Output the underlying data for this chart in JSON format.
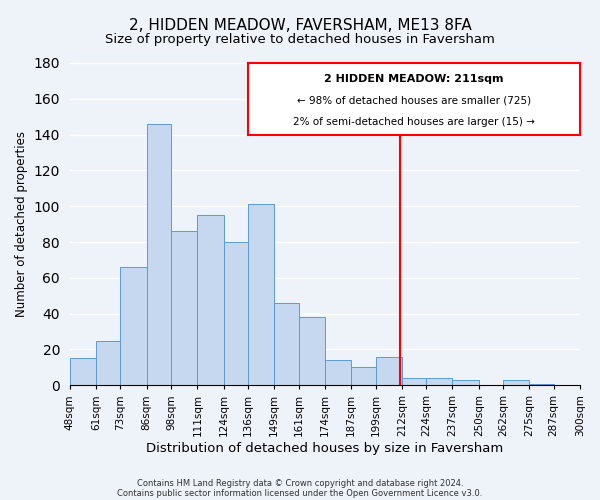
{
  "title": "2, HIDDEN MEADOW, FAVERSHAM, ME13 8FA",
  "subtitle": "Size of property relative to detached houses in Faversham",
  "xlabel": "Distribution of detached houses by size in Faversham",
  "ylabel": "Number of detached properties",
  "bar_edges": [
    48,
    61,
    73,
    86,
    98,
    111,
    124,
    136,
    149,
    161,
    174,
    187,
    199,
    212,
    224,
    237,
    250,
    262,
    275,
    287,
    300
  ],
  "bar_heights": [
    15,
    25,
    66,
    146,
    86,
    95,
    80,
    101,
    46,
    38,
    14,
    10,
    16,
    4,
    4,
    3,
    0,
    3,
    1,
    0
  ],
  "bar_color": "#c5d8f0",
  "bar_edge_color": "#5b9bd5",
  "vline_x": 211,
  "vline_color": "red",
  "ylim": [
    0,
    180
  ],
  "yticks": [
    0,
    20,
    40,
    60,
    80,
    100,
    120,
    140,
    160,
    180
  ],
  "tick_labels": [
    "48sqm",
    "61sqm",
    "73sqm",
    "86sqm",
    "98sqm",
    "111sqm",
    "124sqm",
    "136sqm",
    "149sqm",
    "161sqm",
    "174sqm",
    "187sqm",
    "199sqm",
    "212sqm",
    "224sqm",
    "237sqm",
    "250sqm",
    "262sqm",
    "275sqm",
    "287sqm",
    "300sqm"
  ],
  "annotation_title": "2 HIDDEN MEADOW: 211sqm",
  "annotation_line1": "← 98% of detached houses are smaller (725)",
  "annotation_line2": "2% of semi-detached houses are larger (15) →",
  "footer1": "Contains HM Land Registry data © Crown copyright and database right 2024.",
  "footer2": "Contains public sector information licensed under the Open Government Licence v3.0.",
  "background_color": "#eef2f9",
  "grid_color": "white",
  "title_fontsize": 11,
  "subtitle_fontsize": 9.5,
  "xlabel_fontsize": 9.5,
  "ylabel_fontsize": 8.5,
  "tick_fontsize": 7.5,
  "footer_fontsize": 6,
  "annotation_box_edge_color": "red",
  "annotation_box_face_color": "white"
}
